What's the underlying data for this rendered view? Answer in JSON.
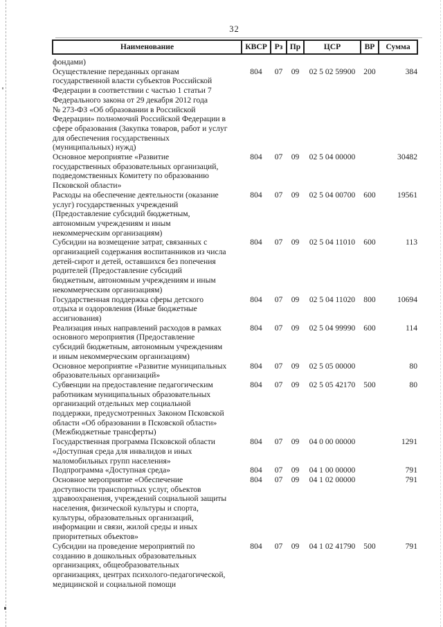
{
  "page_number": "32",
  "table": {
    "columns": [
      {
        "key": "name",
        "label": "Наименование"
      },
      {
        "key": "kvsr",
        "label": "КВСР"
      },
      {
        "key": "rz",
        "label": "Рз"
      },
      {
        "key": "pr",
        "label": "Пр"
      },
      {
        "key": "csr",
        "label": "ЦСР"
      },
      {
        "key": "vr",
        "label": "ВР"
      },
      {
        "key": "summa",
        "label": "Сумма"
      }
    ],
    "rows": [
      {
        "name": "фондами)",
        "kvsr": "",
        "rz": "",
        "pr": "",
        "csr": "",
        "vr": "",
        "summa": ""
      },
      {
        "name": "Осуществление переданных органам\nгосударственной власти субъектов Российской\nФедерации в соответствии с частью 1 статьи 7\nФедерального закона от 29 декабря 2012 года\n№ 273-ФЗ «Об образовании в Российской\nФедерации» полномочий Российской Федерации в\nсфере образования (Закупка товаров, работ и услуг\nдля обеспечения государственных\n(муниципальных) нужд)",
        "kvsr": "804",
        "rz": "07",
        "pr": "09",
        "csr": "02 5 02 59900",
        "vr": "200",
        "summa": "384"
      },
      {
        "name": "Основное мероприятие «Развитие\nгосударственных образовательных организаций,\nподведомственных Комитету по образованию\nПсковской области»",
        "kvsr": "804",
        "rz": "07",
        "pr": "09",
        "csr": "02 5 04 00000",
        "vr": "",
        "summa": "30482"
      },
      {
        "name": "Расходы на обеспечение деятельности (оказание\nуслуг) государственных учреждений\n(Предоставление субсидий бюджетным,\nавтономным учреждениям и иным\nнекоммерческим организациям)",
        "kvsr": "804",
        "rz": "07",
        "pr": "09",
        "csr": "02 5 04 00700",
        "vr": "600",
        "summa": "19561"
      },
      {
        "name": "Субсидии на возмещение затрат, связанных с\nорганизацией содержания воспитанников из числа\nдетей-сирот и детей, оставшихся без попечения\nродителей (Предоставление субсидий\nбюджетным, автономным учреждениям и иным\nнекоммерческим организациям)",
        "kvsr": "804",
        "rz": "07",
        "pr": "09",
        "csr": "02 5 04 11010",
        "vr": "600",
        "summa": "113"
      },
      {
        "name": "Государственная поддержка сферы детского\nотдыха и оздоровления (Иные бюджетные\nассигнования)",
        "kvsr": "804",
        "rz": "07",
        "pr": "09",
        "csr": "02 5 04 11020",
        "vr": "800",
        "summa": "10694"
      },
      {
        "name": "Реализация иных направлений расходов в рамках\nосновного мероприятия (Предоставление\nсубсидий бюджетным, автономным учреждениям\nи иным некоммерческим организациям)",
        "kvsr": "804",
        "rz": "07",
        "pr": "09",
        "csr": "02 5 04 99990",
        "vr": "600",
        "summa": "114"
      },
      {
        "name": "Основное мероприятие «Развитие муниципальных\nобразовательных организаций»",
        "kvsr": "804",
        "rz": "07",
        "pr": "09",
        "csr": "02 5 05 00000",
        "vr": "",
        "summa": "80"
      },
      {
        "name": "Субвенции на предоставление педагогическим\nработникам муниципальных образовательных\nорганизаций отдельных мер социальной\nподдержки, предусмотренных Законом Псковской\nобласти «Об образовании в Псковской области»\n(Межбюджетные трансферты)",
        "kvsr": "804",
        "rz": "07",
        "pr": "09",
        "csr": "02 5 05 42170",
        "vr": "500",
        "summa": "80"
      },
      {
        "name": "Государственная программа Псковской области\n«Доступная среда для инвалидов и иных\nмаломобильных групп населения»",
        "kvsr": "804",
        "rz": "07",
        "pr": "09",
        "csr": "04 0 00 00000",
        "vr": "",
        "summa": "1291"
      },
      {
        "name": "Подпрограмма «Доступная среда»",
        "kvsr": "804",
        "rz": "07",
        "pr": "09",
        "csr": "04 1 00 00000",
        "vr": "",
        "summa": "791"
      },
      {
        "name": "Основное мероприятие «Обеспечение\nдоступности транспортных услуг, объектов\nздравоохранения, учреждений социальной защиты\nнаселения, физической культуры и спорта,\nкультуры, образовательных организаций,\nинформации и связи, жилой среды и иных\nприоритетных объектов»",
        "kvsr": "804",
        "rz": "07",
        "pr": "09",
        "csr": "04 1 02 00000",
        "vr": "",
        "summa": "791"
      },
      {
        "name": "Субсидии на проведение мероприятий по\nсозданию в дошкольных образовательных\nорганизациях, общеобразовательных\nорганизациях, центрах психолого-педагогической,\nмедицинской и социальной помощи",
        "kvsr": "804",
        "rz": "07",
        "pr": "09",
        "csr": "04 1 02 41790",
        "vr": "500",
        "summa": "791"
      }
    ]
  }
}
